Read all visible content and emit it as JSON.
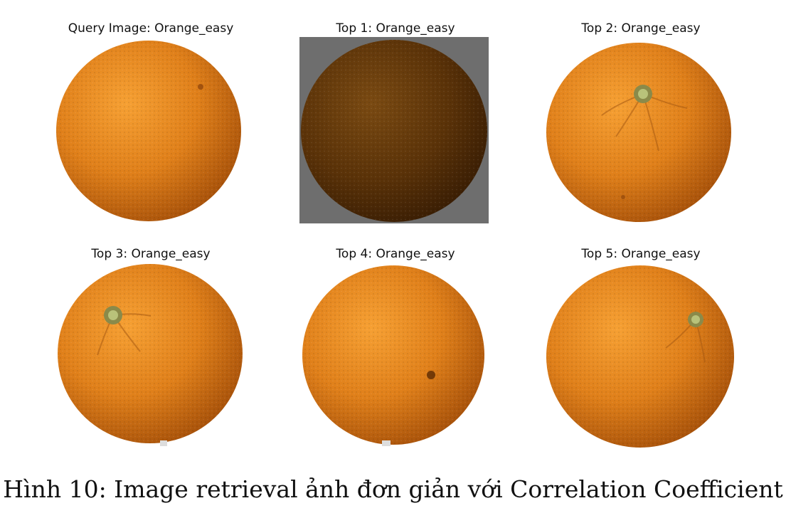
{
  "figure": {
    "images": [
      {
        "title": "Query Image: Orange_easy",
        "picture": "orange-plain",
        "background": "white"
      },
      {
        "title": "Top 1: Orange_easy",
        "picture": "orange-dark",
        "background": "gray"
      },
      {
        "title": "Top 2: Orange_easy",
        "picture": "orange-stem-top",
        "background": "white"
      },
      {
        "title": "Top 3: Orange_easy",
        "picture": "orange-stem-left",
        "background": "white"
      },
      {
        "title": "Top 4: Orange_easy",
        "picture": "orange-blemish",
        "background": "white"
      },
      {
        "title": "Top 5: Orange_easy",
        "picture": "orange-stem-right",
        "background": "white"
      }
    ],
    "caption": "Hình 10: Image retrieval ảnh đơn giản với Correlation Coefficient"
  }
}
